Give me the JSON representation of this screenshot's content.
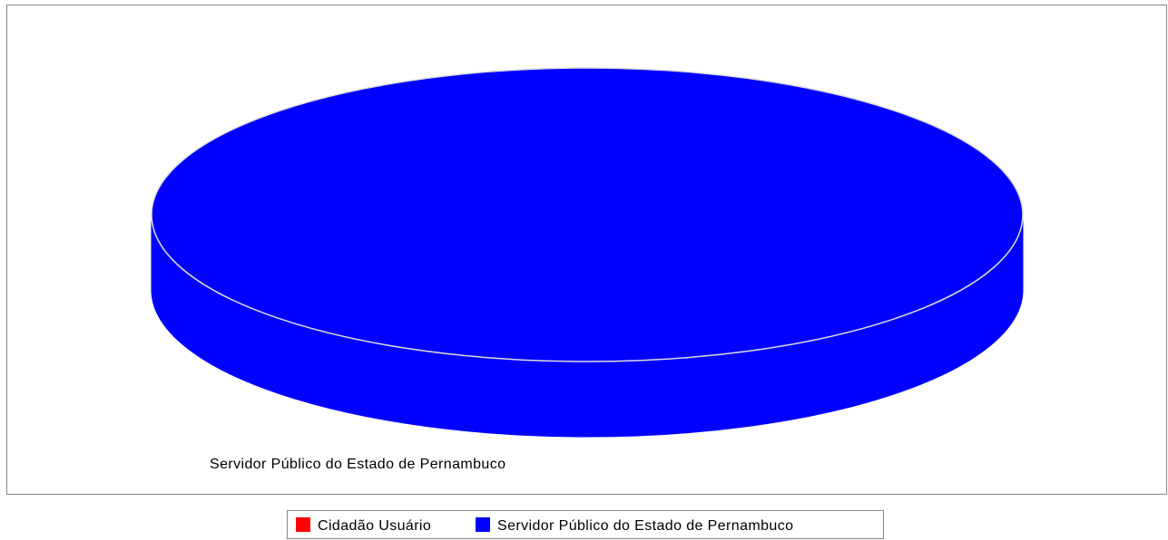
{
  "chart_data": {
    "type": "pie3d",
    "categories": [
      "Cidadão Usuário",
      "Servidor Público do Estado de Pernambuco"
    ],
    "values": [
      0,
      100
    ],
    "colors": [
      "#ff0000",
      "#0000ff"
    ],
    "section_label_index": 1,
    "legend": "bottom"
  }
}
